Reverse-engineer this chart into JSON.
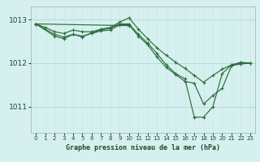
{
  "title": "Graphe pression niveau de la mer (hPa)",
  "background_color": "#d6f0f0",
  "grid_color_h": "#b8ddd8",
  "grid_color_v": "#c8e8e4",
  "line_color": "#2d6e3a",
  "xlim": [
    -0.5,
    23.5
  ],
  "ylim": [
    1010.4,
    1013.3
  ],
  "yticks": [
    1011,
    1012,
    1013
  ],
  "xticks": [
    0,
    1,
    2,
    3,
    4,
    5,
    6,
    7,
    8,
    9,
    10,
    11,
    12,
    13,
    14,
    15,
    16,
    17,
    18,
    19,
    20,
    21,
    22,
    23
  ],
  "series": [
    {
      "x": [
        0,
        1,
        2,
        3,
        4,
        5,
        6,
        7,
        8,
        9,
        10,
        11,
        12,
        13,
        14,
        15,
        16,
        17,
        18,
        19,
        20,
        21,
        22,
        23
      ],
      "y": [
        1012.9,
        1012.82,
        1012.72,
        1012.68,
        1012.76,
        1012.72,
        1012.72,
        1012.78,
        1012.82,
        1012.94,
        1013.04,
        1012.78,
        1012.56,
        1012.35,
        1012.18,
        1012.02,
        1011.88,
        1011.72,
        1011.56,
        1011.72,
        1011.86,
        1011.96,
        1012.02,
        1012.0
      ]
    },
    {
      "x": [
        0,
        2,
        3,
        4,
        5,
        6,
        7,
        8,
        9,
        10,
        11,
        12,
        13,
        14,
        15,
        16,
        17,
        18,
        19,
        20,
        21,
        22,
        23
      ],
      "y": [
        1012.9,
        1012.62,
        1012.56,
        1012.66,
        1012.62,
        1012.68,
        1012.74,
        1012.76,
        1012.88,
        1012.88,
        1012.62,
        1012.42,
        1012.14,
        1011.9,
        1011.74,
        1011.58,
        1011.54,
        1011.06,
        1011.26,
        1011.42,
        1011.94,
        1011.98,
        1012.0
      ]
    },
    {
      "x": [
        0,
        2,
        3,
        4,
        5,
        6,
        7,
        8,
        9,
        10,
        11,
        12,
        13,
        14,
        15,
        16,
        17,
        18,
        19,
        20,
        21,
        22,
        23
      ],
      "y": [
        1012.9,
        1012.66,
        1012.6,
        1012.66,
        1012.6,
        1012.7,
        1012.76,
        1012.8,
        1012.9,
        1012.9,
        1012.66,
        1012.46,
        1012.22,
        1011.96,
        1011.76,
        1011.64,
        1010.76,
        1010.76,
        1011.0,
        1011.76,
        1011.96,
        1012.0,
        1012.0
      ]
    },
    {
      "x": [
        0,
        10
      ],
      "y": [
        1012.9,
        1012.86
      ]
    }
  ]
}
